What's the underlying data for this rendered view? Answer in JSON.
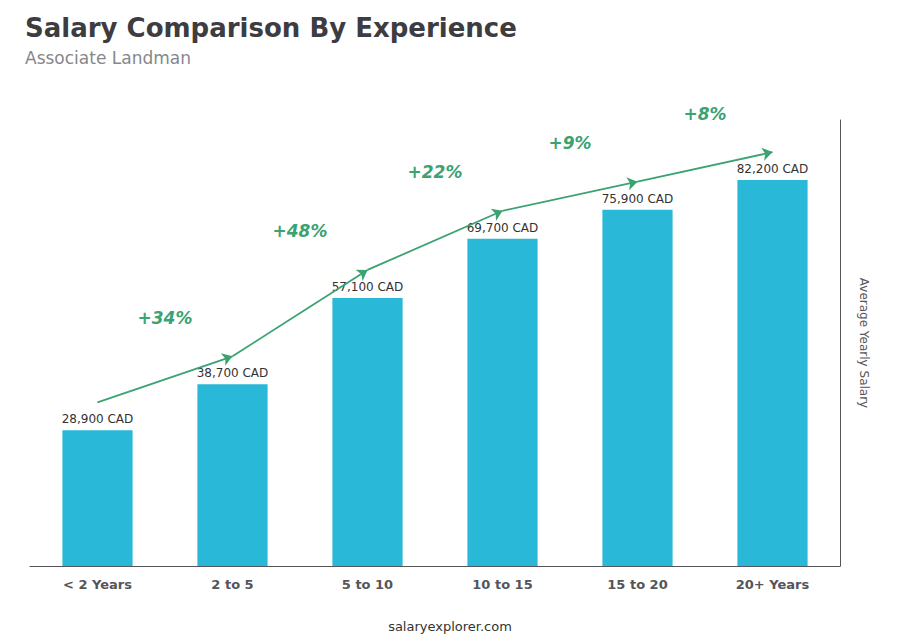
{
  "chart_data": {
    "type": "bar",
    "title": "Salary Comparison By Experience",
    "subtitle": "Associate Landman",
    "ylabel": "Average Yearly Salary",
    "categories": [
      "< 2 Years",
      "2 to 5",
      "5 to 10",
      "10 to 15",
      "15 to 20",
      "20+ Years"
    ],
    "values": [
      28900,
      38700,
      57100,
      69700,
      75900,
      82200
    ],
    "value_labels": [
      "28,900 CAD",
      "38,700 CAD",
      "57,100 CAD",
      "69,700 CAD",
      "75,900 CAD",
      "82,200 CAD"
    ],
    "data_labels": true,
    "color": "#29b8d8",
    "annotations": [
      "+34%",
      "+48%",
      "+22%",
      "+9%",
      "+8%"
    ],
    "footer": "salaryexplorer.com",
    "ylim": [
      0,
      95000
    ],
    "yticks": [],
    "tick_labels": "x",
    "grid": false
  }
}
